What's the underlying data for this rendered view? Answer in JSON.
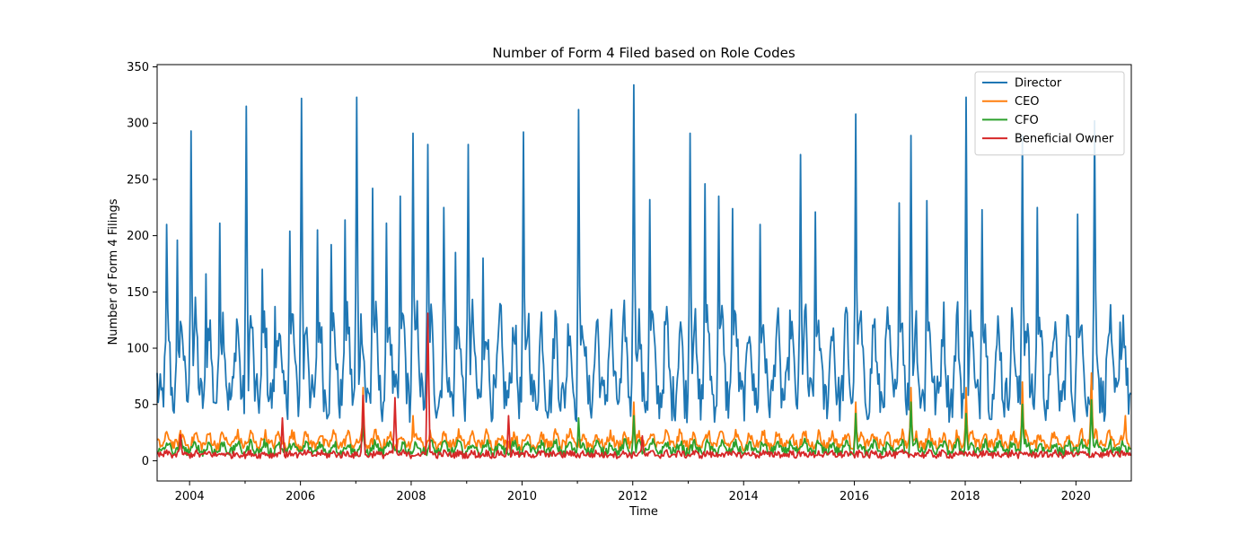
{
  "chart_data": {
    "type": "line",
    "title": "Number of Form 4 Filed based on Role Codes",
    "xlabel": "Time",
    "ylabel": "Number of Form 4 Filings",
    "xlim": [
      "2003-06-01",
      "2020-12-31"
    ],
    "ylim": [
      -18,
      352
    ],
    "x_ticks": [
      "2004",
      "2006",
      "2008",
      "2010",
      "2012",
      "2014",
      "2016",
      "2018",
      "2020"
    ],
    "y_ticks": [
      0,
      50,
      100,
      150,
      200,
      250,
      300,
      350
    ],
    "grid": false,
    "legend_position": "top-right",
    "x_sampling": "weekly, from 2003-06-01 to 2020-12-31",
    "series": [
      {
        "name": "Director",
        "color": "#1f77b4",
        "pattern": "strong quarterly cycle; values mostly 30-160 with sharp peaks",
        "peaks": [
          {
            "x": "2003-08-01",
            "y": 210
          },
          {
            "x": "2003-10-15",
            "y": 196
          },
          {
            "x": "2004-01-10",
            "y": 293
          },
          {
            "x": "2004-04-20",
            "y": 166
          },
          {
            "x": "2004-07-15",
            "y": 211
          },
          {
            "x": "2005-01-10",
            "y": 315
          },
          {
            "x": "2005-04-25",
            "y": 170
          },
          {
            "x": "2005-07-20",
            "y": 137
          },
          {
            "x": "2005-10-20",
            "y": 204
          },
          {
            "x": "2006-01-10",
            "y": 322
          },
          {
            "x": "2006-04-25",
            "y": 205
          },
          {
            "x": "2006-07-20",
            "y": 192
          },
          {
            "x": "2006-10-20",
            "y": 214
          },
          {
            "x": "2007-01-10",
            "y": 323
          },
          {
            "x": "2007-04-25",
            "y": 242
          },
          {
            "x": "2007-07-20",
            "y": 211
          },
          {
            "x": "2007-10-20",
            "y": 235
          },
          {
            "x": "2008-01-10",
            "y": 291
          },
          {
            "x": "2008-04-20",
            "y": 281
          },
          {
            "x": "2008-08-05",
            "y": 225
          },
          {
            "x": "2008-10-20",
            "y": 185
          },
          {
            "x": "2009-01-10",
            "y": 281
          },
          {
            "x": "2009-04-20",
            "y": 180
          },
          {
            "x": "2010-01-10",
            "y": 292
          },
          {
            "x": "2011-01-10",
            "y": 312
          },
          {
            "x": "2012-01-10",
            "y": 334
          },
          {
            "x": "2012-04-25",
            "y": 232
          },
          {
            "x": "2013-01-10",
            "y": 291
          },
          {
            "x": "2013-04-20",
            "y": 246
          },
          {
            "x": "2013-07-20",
            "y": 235
          },
          {
            "x": "2013-10-20",
            "y": 224
          },
          {
            "x": "2014-04-20",
            "y": 210
          },
          {
            "x": "2015-01-10",
            "y": 272
          },
          {
            "x": "2015-04-20",
            "y": 221
          },
          {
            "x": "2016-01-10",
            "y": 308
          },
          {
            "x": "2016-10-20",
            "y": 229
          },
          {
            "x": "2017-01-10",
            "y": 289
          },
          {
            "x": "2017-04-20",
            "y": 231
          },
          {
            "x": "2018-01-10",
            "y": 323
          },
          {
            "x": "2018-04-20",
            "y": 223
          },
          {
            "x": "2019-01-10",
            "y": 289
          },
          {
            "x": "2019-04-20",
            "y": 225
          },
          {
            "x": "2020-01-10",
            "y": 219
          },
          {
            "x": "2020-05-05",
            "y": 302
          },
          {
            "x": "2020-10-20",
            "y": 123
          }
        ]
      },
      {
        "name": "CEO",
        "color": "#ff7f0e",
        "pattern": "quarterly cycle; values mostly 5-35",
        "peaks": [
          {
            "x": "2007-02-20",
            "y": 65
          },
          {
            "x": "2008-01-10",
            "y": 40
          },
          {
            "x": "2012-01-10",
            "y": 52
          },
          {
            "x": "2016-01-10",
            "y": 52
          },
          {
            "x": "2017-01-10",
            "y": 65
          },
          {
            "x": "2018-01-10",
            "y": 65
          },
          {
            "x": "2019-01-10",
            "y": 70
          },
          {
            "x": "2020-04-10",
            "y": 78
          },
          {
            "x": "2020-11-20",
            "y": 40
          }
        ]
      },
      {
        "name": "CFO",
        "color": "#2ca02c",
        "pattern": "quarterly cycle; values mostly 3-25",
        "peaks": [
          {
            "x": "2007-02-20",
            "y": 35
          },
          {
            "x": "2011-01-10",
            "y": 38
          },
          {
            "x": "2012-01-10",
            "y": 40
          },
          {
            "x": "2016-01-10",
            "y": 42
          },
          {
            "x": "2017-01-10",
            "y": 52
          },
          {
            "x": "2018-01-10",
            "y": 42
          },
          {
            "x": "2019-01-10",
            "y": 50
          },
          {
            "x": "2020-04-10",
            "y": 54
          }
        ]
      },
      {
        "name": "Beneficial Owner",
        "color": "#d62728",
        "pattern": "low, mostly 0-15 with occasional spikes",
        "peaks": [
          {
            "x": "2003-11-01",
            "y": 23
          },
          {
            "x": "2005-09-01",
            "y": 38
          },
          {
            "x": "2007-02-15",
            "y": 58
          },
          {
            "x": "2007-09-15",
            "y": 56
          },
          {
            "x": "2008-04-20",
            "y": 131
          },
          {
            "x": "2009-10-01",
            "y": 40
          },
          {
            "x": "2012-03-01",
            "y": 22
          }
        ]
      }
    ]
  }
}
